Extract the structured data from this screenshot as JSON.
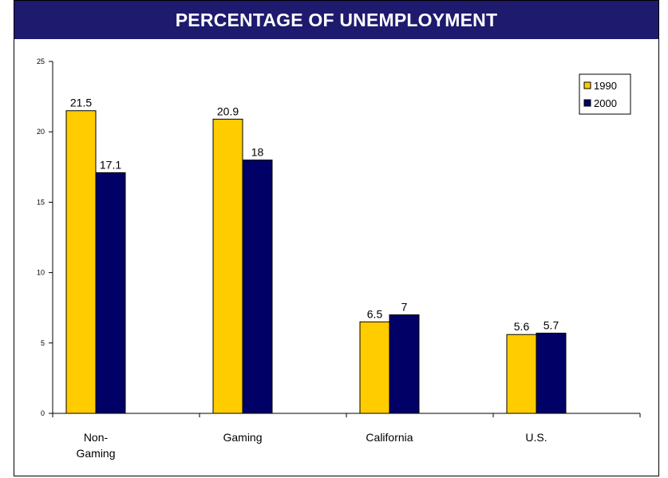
{
  "colors": {
    "title_bg": "#1e1a6e",
    "series_1990": "#ffcc00",
    "series_2000": "#000066"
  },
  "chart_data": {
    "type": "bar",
    "title": "PERCENTAGE OF UNEMPLOYMENT",
    "categories": [
      "Non-\nGaming",
      "Gaming",
      "California",
      "U.S."
    ],
    "series": [
      {
        "name": "1990",
        "values": [
          21.5,
          20.9,
          6.5,
          5.6
        ]
      },
      {
        "name": "2000",
        "values": [
          17.1,
          18,
          7,
          5.7
        ]
      }
    ],
    "data_labels": [
      [
        "21.5",
        "20.9",
        "6.5",
        "5.6"
      ],
      [
        "17.1",
        "18",
        "7",
        "5.7"
      ]
    ],
    "yticks": [
      "0",
      "5",
      "10",
      "15",
      "20",
      "25"
    ],
    "ylim": [
      0,
      25
    ],
    "xlabel": "",
    "ylabel": "",
    "grid": false,
    "legend_position": "top-right"
  }
}
